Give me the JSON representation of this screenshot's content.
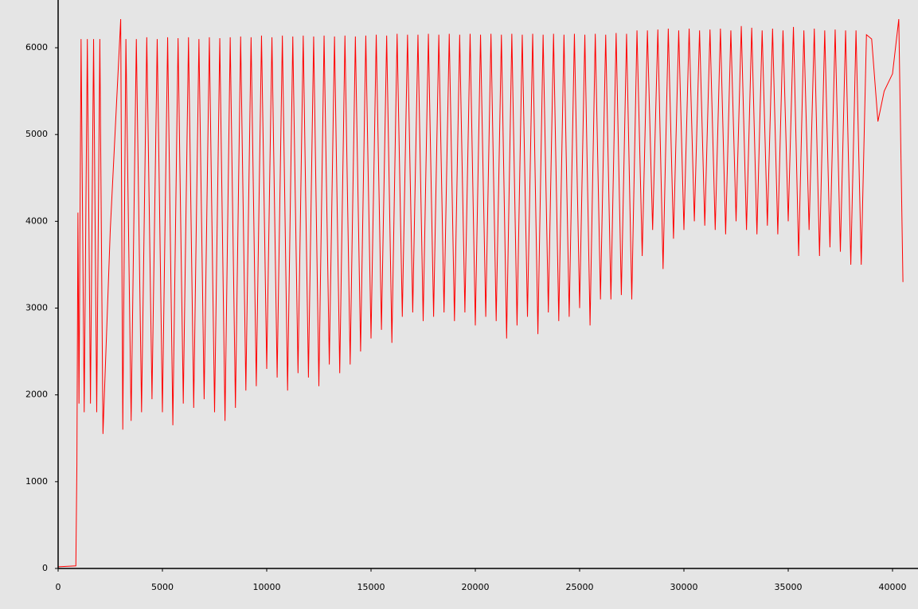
{
  "chart_data": {
    "type": "line",
    "color": "#ff0000",
    "xlim": [
      0,
      41200
    ],
    "ylim": [
      0,
      6550
    ],
    "xticks": [
      0,
      5000,
      10000,
      15000,
      20000,
      25000,
      30000,
      35000,
      40000
    ],
    "yticks": [
      0,
      1000,
      2000,
      3000,
      4000,
      5000,
      6000
    ],
    "x": [
      0,
      850,
      900,
      950,
      1000,
      1100,
      1250,
      1400,
      1550,
      1700,
      1850,
      2000,
      2150,
      2500,
      3000,
      3100,
      3250,
      3500,
      3750,
      4000,
      4250,
      4500,
      4750,
      5000,
      5250,
      5500,
      5750,
      6000,
      6250,
      6500,
      6750,
      7000,
      7250,
      7500,
      7750,
      8000,
      8250,
      8500,
      8750,
      9000,
      9250,
      9500,
      9750,
      10000,
      10250,
      10500,
      10750,
      11000,
      11250,
      11500,
      11750,
      12000,
      12250,
      12500,
      12750,
      13000,
      13250,
      13500,
      13750,
      14000,
      14250,
      14500,
      14750,
      15000,
      15250,
      15500,
      15750,
      16000,
      16250,
      16500,
      16750,
      17000,
      17250,
      17500,
      17750,
      18000,
      18250,
      18500,
      18750,
      19000,
      19250,
      19500,
      19750,
      20000,
      20250,
      20500,
      20750,
      21000,
      21250,
      21500,
      21750,
      22000,
      22250,
      22500,
      22750,
      23000,
      23250,
      23500,
      23750,
      24000,
      24250,
      24500,
      24750,
      25000,
      25250,
      25500,
      25750,
      26000,
      26250,
      26500,
      26750,
      27000,
      27250,
      27500,
      27750,
      28000,
      28250,
      28500,
      28750,
      29000,
      29250,
      29500,
      29750,
      30000,
      30250,
      30500,
      30750,
      31000,
      31250,
      31500,
      31750,
      32000,
      32250,
      32500,
      32750,
      33000,
      33250,
      33500,
      33750,
      34000,
      34250,
      34500,
      34750,
      35000,
      35250,
      35500,
      35750,
      36000,
      36250,
      36500,
      36750,
      37000,
      37250,
      37500,
      37750,
      38000,
      38250,
      38500,
      38750,
      39000,
      39300,
      39600,
      40000,
      40300,
      40500
    ],
    "values": [
      20,
      30,
      1200,
      4100,
      1900,
      6100,
      1800,
      6100,
      1900,
      6100,
      1800,
      6100,
      1550,
      3900,
      6330,
      1600,
      6100,
      1700,
      6100,
      1800,
      6120,
      1950,
      6100,
      1800,
      6120,
      1650,
      6110,
      1900,
      6120,
      1850,
      6100,
      1950,
      6120,
      1800,
      6110,
      1700,
      6120,
      1850,
      6130,
      2050,
      6120,
      2100,
      6140,
      2300,
      6120,
      2200,
      6140,
      2050,
      6130,
      2250,
      6140,
      2200,
      6130,
      2100,
      6140,
      2350,
      6130,
      2250,
      6140,
      2350,
      6130,
      2500,
      6140,
      2650,
      6150,
      2750,
      6140,
      2600,
      6160,
      2900,
      6150,
      2950,
      6150,
      2850,
      6160,
      2900,
      6150,
      2950,
      6160,
      2850,
      6150,
      2950,
      6160,
      2800,
      6150,
      2900,
      6160,
      2850,
      6150,
      2650,
      6160,
      2800,
      6150,
      2900,
      6160,
      2700,
      6150,
      2950,
      6160,
      2850,
      6150,
      2900,
      6160,
      3000,
      6150,
      2800,
      6160,
      3100,
      6150,
      3100,
      6170,
      3150,
      6160,
      3100,
      6200,
      3600,
      6200,
      3900,
      6210,
      3450,
      6220,
      3800,
      6200,
      3900,
      6220,
      4000,
      6200,
      3950,
      6210,
      3900,
      6220,
      3850,
      6200,
      4000,
      6250,
      3900,
      6230,
      3850,
      6200,
      3950,
      6220,
      3850,
      6200,
      4000,
      6240,
      3600,
      6200,
      3900,
      6220,
      3600,
      6200,
      3700,
      6210,
      3650,
      6200,
      3500,
      6200,
      3500,
      6150,
      6100,
      5150,
      5500,
      5700,
      6330,
      3300
    ]
  }
}
